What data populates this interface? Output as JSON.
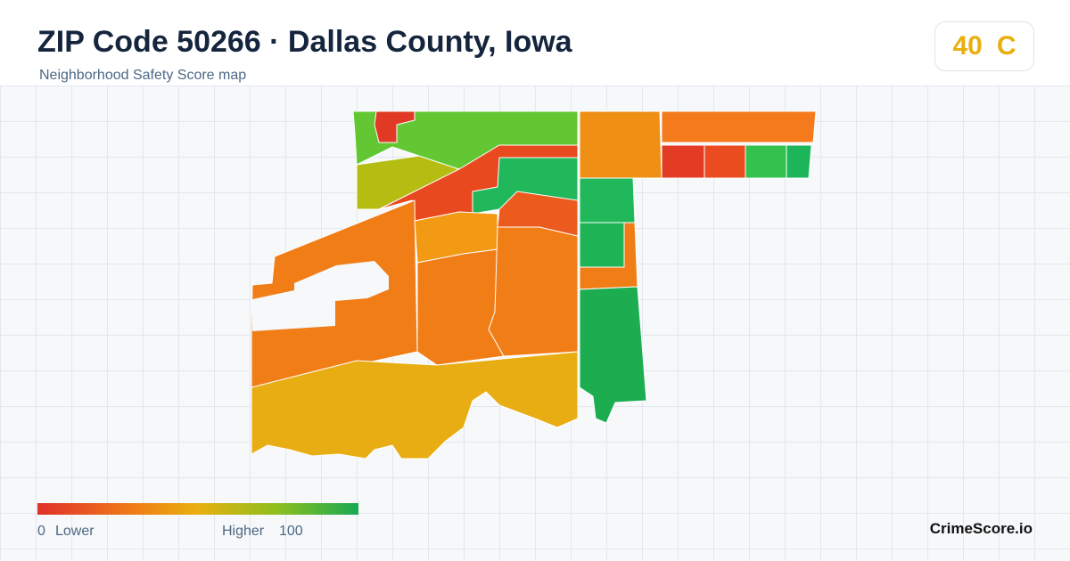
{
  "header": {
    "title": "ZIP Code 50266 · Dallas County, Iowa",
    "subtitle": "Neighborhood Safety Score map"
  },
  "score": {
    "value": "40",
    "grade": "C"
  },
  "legend": {
    "min": "0",
    "min_label": "Lower",
    "max_label": "Higher",
    "max": "100"
  },
  "footer": {
    "brand": "CrimeScore.io"
  }
}
